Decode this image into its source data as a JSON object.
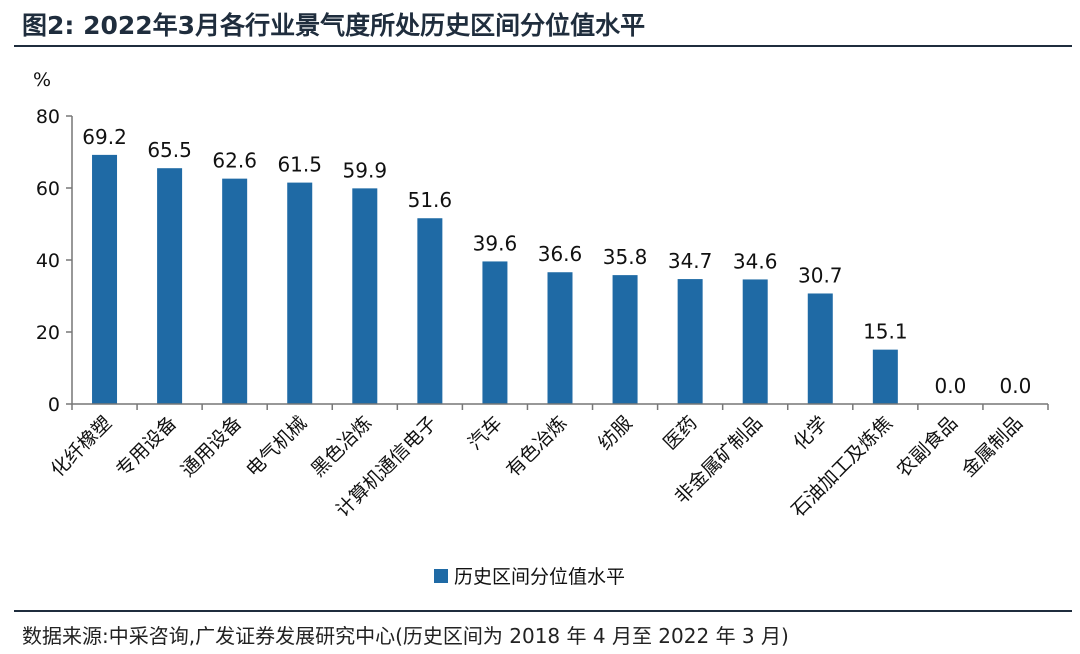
{
  "figure": {
    "title": "图2:  2022年3月各行业景气度所处历史区间分位值水平",
    "source": "数据来源:中采咨询,广发证券发展研究中心(历史区间为 2018 年 4 月至 2022 年 3 月)"
  },
  "chart_data": {
    "type": "bar",
    "title": "",
    "ylabel": "%",
    "xlabel": "",
    "ylim": [
      0,
      80
    ],
    "yticks": [
      0,
      20,
      40,
      60,
      80
    ],
    "grid": false,
    "legend_position": "bottom",
    "bar_color": "#1f6aa5",
    "categories": [
      "化纤橡塑",
      "专用设备",
      "通用设备",
      "电气机械",
      "黑色冶炼",
      "计算机通信电子",
      "汽车",
      "有色冶炼",
      "纺服",
      "医药",
      "非金属矿制品",
      "化学",
      "石油加工及炼焦",
      "农副食品",
      "金属制品"
    ],
    "series": [
      {
        "name": "历史区间分位值水平",
        "values": [
          69.2,
          65.5,
          62.6,
          61.5,
          59.9,
          51.6,
          39.6,
          36.6,
          35.8,
          34.7,
          34.6,
          30.7,
          15.1,
          0.0,
          0.0
        ],
        "labels": [
          "69.2",
          "65.5",
          "62.6",
          "61.5",
          "59.9",
          "51.6",
          "39.6",
          "36.6",
          "35.8",
          "34.7",
          "34.6",
          "30.7",
          "15.1",
          "0.0",
          "0.0"
        ]
      }
    ]
  }
}
